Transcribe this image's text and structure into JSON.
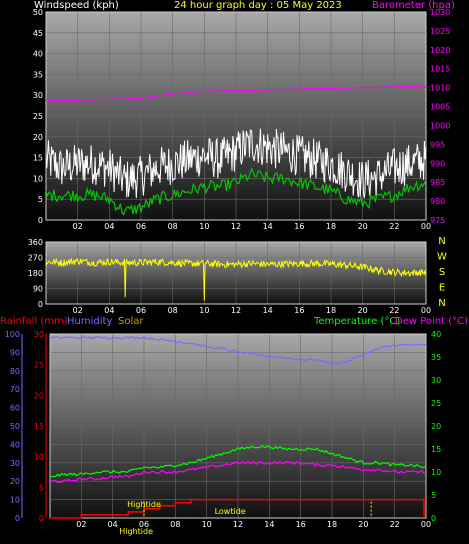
{
  "header": {
    "title": "24 hour graph day : 05 May 2023",
    "left_label": "Windspeed (kph)",
    "right_label": "Barometer (hpa)"
  },
  "colors": {
    "title": "#ffff00",
    "wind_avg": "#00c800",
    "wind_gust": "#ffffff",
    "barometer": "#ff00ff",
    "direction": "#ffff00",
    "temperature": "#00ff00",
    "dewpoint": "#ff00ff",
    "humidity": "#7070ff",
    "rain": "#ff0000",
    "solar": "#c8a000",
    "tide": "#ffff00",
    "axis_left_rain": "#ff0000",
    "axis_right_temp": "#00ff00"
  },
  "chart_data": [
    {
      "type": "line",
      "panel": "wind",
      "x_ticks": [
        "02",
        "04",
        "06",
        "08",
        "10",
        "12",
        "14",
        "16",
        "18",
        "20",
        "22",
        "00"
      ],
      "y_ticks_left": [
        "0",
        "5",
        "10",
        "15",
        "20",
        "25",
        "30",
        "35",
        "40",
        "45",
        "50"
      ],
      "y_ticks_right": [
        "975",
        "980",
        "985",
        "990",
        "995",
        "1000",
        "1005",
        "1010",
        "1015",
        "1020",
        "1025",
        "1030"
      ],
      "ylim_left": [
        0,
        50
      ],
      "ylim_right": [
        975,
        1030
      ],
      "grid": true,
      "hours": [
        0,
        1,
        2,
        3,
        4,
        5,
        6,
        7,
        8,
        9,
        10,
        11,
        12,
        13,
        14,
        15,
        16,
        17,
        18,
        19,
        20,
        21,
        22,
        23,
        24
      ],
      "series": [
        {
          "name": "Windspeed (kph)",
          "axis": "left",
          "style": "gust",
          "values": [
            14,
            12,
            13,
            13,
            12,
            9,
            10,
            12,
            13,
            14,
            15,
            14,
            16,
            18,
            17,
            16,
            15,
            14,
            13,
            11,
            9,
            10,
            12,
            13,
            14
          ]
        },
        {
          "name": "",
          "axis": "left",
          "style": "avg",
          "values": [
            6,
            6,
            6,
            6,
            5,
            2,
            3,
            5,
            6,
            7,
            8,
            8,
            9,
            11,
            10,
            10,
            9,
            8,
            7,
            5,
            4,
            5,
            6,
            8,
            9
          ]
        },
        {
          "name": "Barometer (hpa)",
          "axis": "right",
          "values": [
            1006.5,
            1006.6,
            1006.7,
            1006.8,
            1006.9,
            1007.0,
            1007.2,
            1007.8,
            1008.3,
            1008.7,
            1009.0,
            1009.1,
            1009.2,
            1009.3,
            1009.4,
            1009.5,
            1009.6,
            1009.7,
            1009.8,
            1009.9,
            1010.0,
            1010.1,
            1010.2,
            1010.3,
            1010.2
          ]
        }
      ]
    },
    {
      "type": "line",
      "panel": "wind-direction",
      "x_ticks": [
        "02",
        "04",
        "06",
        "08",
        "10",
        "12",
        "14",
        "16",
        "18",
        "20",
        "22",
        "00"
      ],
      "y_ticks_left": [
        "0",
        "90",
        "180",
        "270",
        "360"
      ],
      "compass_labels": [
        "N",
        "W",
        "S",
        "E",
        "N"
      ],
      "ylim": [
        0,
        360
      ],
      "grid": true,
      "hours": [
        0,
        1,
        2,
        3,
        4,
        5,
        6,
        7,
        8,
        9,
        10,
        11,
        12,
        13,
        14,
        15,
        16,
        17,
        18,
        19,
        20,
        21,
        22,
        23,
        24
      ],
      "series": [
        {
          "name": "",
          "values": [
            245,
            240,
            250,
            240,
            245,
            240,
            240,
            245,
            240,
            235,
            235,
            230,
            230,
            235,
            230,
            232,
            235,
            235,
            232,
            225,
            215,
            195,
            185,
            180,
            185
          ]
        }
      ]
    },
    {
      "type": "line",
      "panel": "temperature",
      "labels": {
        "rain": "Rainfall (mm)",
        "humidity": "Humidity",
        "solar": "Solar",
        "temperature": "Temperature (°C)",
        "dewpoint": "Dew Point (°C)"
      },
      "x_ticks": [
        "02",
        "04",
        "06",
        "08",
        "10",
        "12",
        "14",
        "16",
        "18",
        "20",
        "22",
        "00"
      ],
      "y_ticks_humidity": [
        "0",
        "10",
        "20",
        "30",
        "40",
        "50",
        "60",
        "70",
        "80",
        "90",
        "100"
      ],
      "y_ticks_rain": [
        "0",
        "5",
        "10",
        "15",
        "20",
        "25",
        "30"
      ],
      "y_ticks_temp": [
        "0",
        "5",
        "10",
        "15",
        "20",
        "25",
        "30",
        "35",
        "40"
      ],
      "ylim_humidity": [
        0,
        100
      ],
      "ylim_rain": [
        0,
        30
      ],
      "ylim_temp": [
        0,
        40
      ],
      "grid": true,
      "hours": [
        0,
        1,
        2,
        3,
        4,
        5,
        6,
        7,
        8,
        9,
        10,
        11,
        12,
        13,
        14,
        15,
        16,
        17,
        18,
        19,
        20,
        21,
        22,
        23,
        24
      ],
      "series": [
        {
          "name": "Humidity",
          "axis": "humidity",
          "values": [
            98,
            98,
            98,
            98,
            98,
            98,
            98,
            97,
            96,
            95,
            93,
            92,
            90,
            89,
            88,
            87,
            86,
            86,
            84,
            85,
            89,
            92,
            94,
            94,
            94
          ]
        },
        {
          "name": "Temperature (°C)",
          "axis": "temp",
          "values": [
            9,
            9.5,
            9.5,
            10,
            10,
            10,
            11,
            11,
            11.5,
            12,
            13,
            14,
            15,
            15.5,
            15.5,
            15,
            15,
            15,
            14,
            13,
            12,
            12,
            11.5,
            11.5,
            11
          ]
        },
        {
          "name": "Dew Point (°C)",
          "axis": "temp",
          "values": [
            8,
            8,
            8.5,
            8.5,
            9,
            9,
            10,
            10,
            10,
            10.5,
            11,
            11.5,
            12,
            12,
            12,
            12,
            12,
            11.5,
            11.5,
            11,
            10.5,
            10.5,
            10,
            10,
            10
          ]
        },
        {
          "name": "Rainfall (mm)",
          "axis": "rain",
          "values": [
            0,
            0,
            0.5,
            0.5,
            0.5,
            1,
            1.5,
            2,
            2.5,
            3,
            3,
            3,
            3,
            3,
            3,
            3,
            3,
            3,
            3,
            3,
            3,
            3,
            3,
            3,
            3
          ]
        }
      ],
      "annotations": [
        {
          "text": "Hightide",
          "hour": 6
        },
        {
          "text": "Lowtide",
          "hour": 11.5
        },
        {
          "text": "Hightide",
          "hour": 5.5
        }
      ],
      "tide_markers": [
        6,
        20.5
      ]
    }
  ]
}
